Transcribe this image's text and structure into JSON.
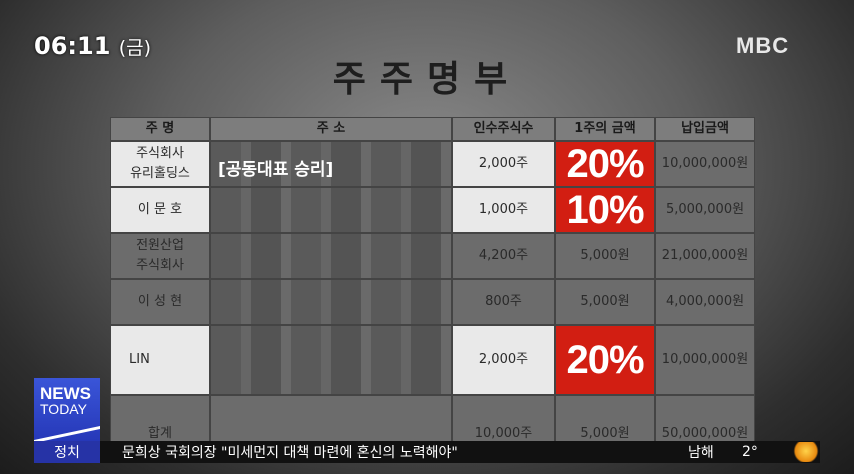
{
  "broadcast": {
    "time": "06:11",
    "day": "(금)",
    "channel_logo": "MBC",
    "program_logo": [
      "NEWS",
      "TODAY"
    ]
  },
  "document": {
    "title": "주주명부",
    "headers": [
      "주 명",
      "주 소",
      "인수주식수",
      "1주의 금액",
      "납입금액"
    ],
    "rows": [
      {
        "name": "주식회사\n유리홀딩스",
        "shares": "2,000주",
        "amount": "20%",
        "paid": "10,000,000원"
      },
      {
        "name": "이 문 호",
        "shares": "1,000주",
        "amount": "10%",
        "paid": "5,000,000원"
      },
      {
        "name": "전원산업\n주식회사",
        "shares": "4,200주",
        "amount": "5,000원",
        "paid": "21,000,000원"
      },
      {
        "name": "이 성 현",
        "shares": "800주",
        "amount": "5,000원",
        "paid": "4,000,000원"
      },
      {
        "name": "LIN",
        "shares": "2,000주",
        "amount": "20%",
        "paid": "10,000,000원"
      },
      {
        "name": "합계",
        "shares": "10,000주",
        "amount": "5,000원",
        "paid": "50,000,000원"
      }
    ]
  },
  "caption": "[공동대표 승리]",
  "ticker": {
    "category": "정치",
    "headline": "문희상 국회의장 \"미세먼지 대책 마련에 혼신의 노력해야\"",
    "city": "남해",
    "temperature": "2°",
    "weather_icon": "sunny-icon"
  },
  "colors": {
    "highlight_red": "#d21e12",
    "ticker_blue": "#2633a6"
  }
}
